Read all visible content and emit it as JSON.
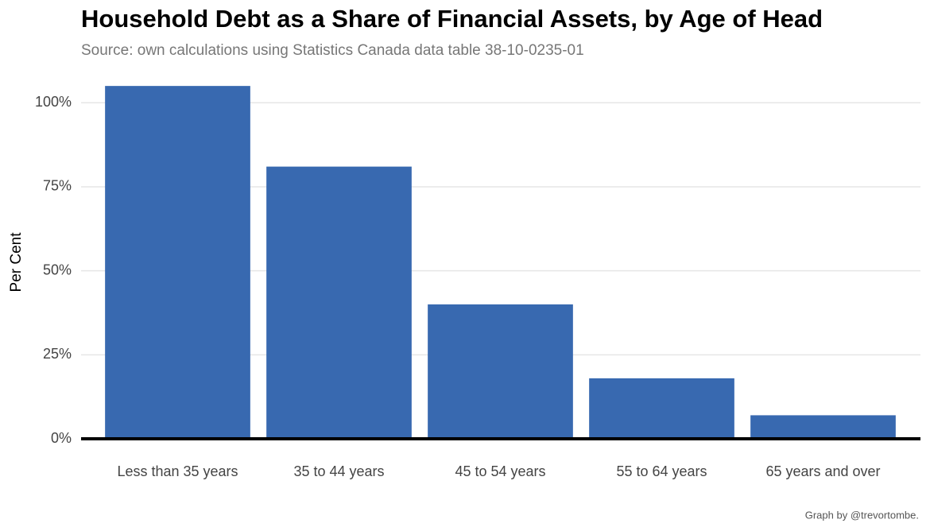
{
  "chart_data": {
    "type": "bar",
    "title": "Household Debt as a Share of Financial Assets, by Age of Head",
    "subtitle": "Source: own calculations using Statistics Canada data table 38-10-0235-01",
    "y_label": "Per Cent",
    "caption": "Graph by @trevortombe.",
    "categories": [
      "Less than 35 years",
      "35 to 44 years",
      "45 to 54 years",
      "55 to 64 years",
      "65 years and over"
    ],
    "values": [
      105,
      81,
      40,
      18,
      7
    ],
    "color": "#3869b0",
    "ylim": [
      0,
      110
    ],
    "yticks": [
      {
        "value": 0,
        "label": "0%"
      },
      {
        "value": 25,
        "label": "25%"
      },
      {
        "value": 50,
        "label": "50%"
      },
      {
        "value": 75,
        "label": "75%"
      },
      {
        "value": 100,
        "label": "100%"
      }
    ],
    "grid": true
  }
}
